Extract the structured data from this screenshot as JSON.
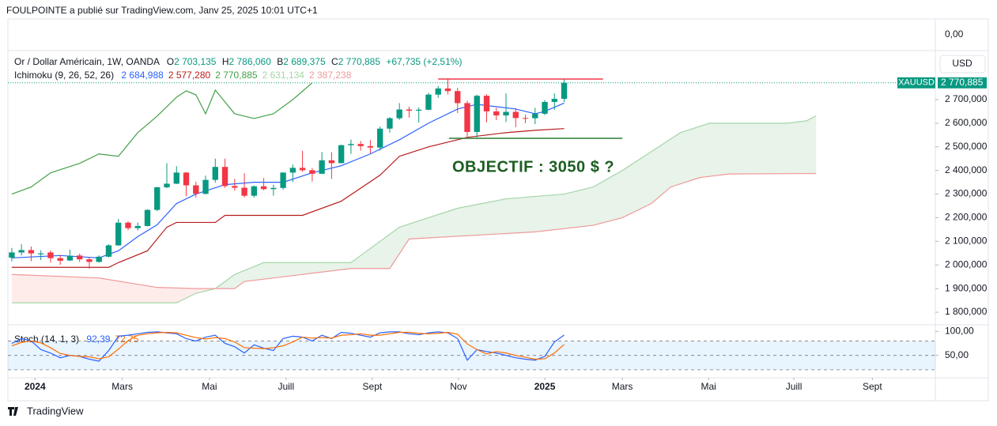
{
  "header": {
    "publisher": "FOULPOINTE a publié sur TradingView.com, Janv 25, 2025 10:01 UTC+1",
    "top_pane_label": "0,00",
    "currency": "USD",
    "logo": "TradingView"
  },
  "legend": {
    "symbol": "Or / Dollar Américain, 1W, OANDA",
    "ohlc": [
      [
        "O",
        "2 703,135"
      ],
      [
        "H",
        "2 786,060"
      ],
      [
        "B",
        "2 689,375"
      ],
      [
        "C",
        "2 770,885"
      ]
    ],
    "change": "+67,735 (+2,51%)",
    "ichimoku": "Ichimoku (9, 26, 52, 26)",
    "ichimoku_values": [
      "2 684,988",
      "2 577,280",
      "2 770,885",
      "2 631,134",
      "2 387,238"
    ],
    "stoch": "Stoch (14, 1, 3)"
  },
  "chart_data": [
    {
      "type": "candlestick",
      "symbol_tag": "XAUUSD",
      "up_color": "#089981",
      "down_color": "#f23645",
      "x": [
        0,
        1,
        2,
        3,
        4,
        5,
        6,
        7,
        8,
        9,
        10,
        11,
        12,
        13,
        14,
        15,
        16,
        17,
        18,
        19,
        20,
        21,
        22,
        23,
        24,
        25,
        26,
        27,
        28,
        29,
        30,
        31,
        32,
        33,
        34,
        35,
        36,
        37,
        38,
        39,
        40,
        41,
        42,
        43,
        44,
        45,
        46,
        47,
        48,
        49,
        50,
        51,
        52,
        53,
        54,
        55,
        56,
        57
      ],
      "open": [
        2031,
        2053,
        2063,
        2045,
        2053,
        2029,
        2019,
        2040,
        2024,
        2013,
        2035,
        2083,
        2179,
        2156,
        2165,
        2233,
        2329,
        2344,
        2391,
        2337,
        2301,
        2360,
        2415,
        2334,
        2327,
        2293,
        2333,
        2321,
        2326,
        2391,
        2411,
        2401,
        2386,
        2443,
        2431,
        2507,
        2512,
        2503,
        2497,
        2577,
        2621,
        2658,
        2653,
        2657,
        2721,
        2747,
        2736,
        2685,
        2563,
        2716,
        2650,
        2633,
        2648,
        2622,
        2621,
        2640,
        2690,
        2703.135
      ],
      "high": [
        2072,
        2088,
        2078,
        2062,
        2062,
        2042,
        2065,
        2048,
        2032,
        2041,
        2088,
        2195,
        2185,
        2180,
        2236,
        2331,
        2431,
        2418,
        2393,
        2352,
        2378,
        2450,
        2450,
        2364,
        2388,
        2336,
        2368,
        2340,
        2392,
        2425,
        2483,
        2410,
        2478,
        2477,
        2509,
        2531,
        2525,
        2529,
        2586,
        2626,
        2685,
        2670,
        2667,
        2729,
        2758,
        2790,
        2750,
        2695,
        2721,
        2722,
        2665,
        2726,
        2664,
        2636,
        2665,
        2698,
        2726,
        2786.06
      ],
      "low": [
        2015,
        2040,
        2016,
        2021,
        2010,
        2001,
        2017,
        2013,
        1984,
        2010,
        2032,
        2081,
        2147,
        2146,
        2163,
        2228,
        2325,
        2342,
        2291,
        2285,
        2298,
        2349,
        2326,
        2314,
        2286,
        2285,
        2316,
        2293,
        2318,
        2351,
        2394,
        2353,
        2385,
        2364,
        2430,
        2470,
        2484,
        2472,
        2484,
        2560,
        2614,
        2624,
        2603,
        2655,
        2707,
        2722,
        2643,
        2537,
        2537,
        2604,
        2613,
        2605,
        2583,
        2600,
        2596,
        2634,
        2657,
        2689.375
      ],
      "close": [
        2053,
        2063,
        2049,
        2049,
        2029,
        2018,
        2039,
        2024,
        2013,
        2035,
        2083,
        2179,
        2156,
        2165,
        2233,
        2329,
        2344,
        2391,
        2337,
        2301,
        2360,
        2415,
        2334,
        2327,
        2293,
        2333,
        2321,
        2326,
        2391,
        2411,
        2401,
        2386,
        2443,
        2431,
        2507,
        2512,
        2503,
        2497,
        2577,
        2621,
        2658,
        2653,
        2657,
        2721,
        2747,
        2736,
        2685,
        2563,
        2716,
        2650,
        2633,
        2648,
        2622,
        2621,
        2640,
        2690,
        2703,
        2770.885
      ],
      "series": [
        {
          "color": "#2962ff",
          "x": [
            0,
            5,
            9,
            11,
            13,
            15,
            17,
            19,
            22,
            25,
            28,
            31,
            34,
            37,
            40,
            43,
            46,
            48,
            52,
            54,
            55,
            57
          ],
          "values": [
            2030,
            2040,
            2030,
            2060,
            2120,
            2170,
            2260,
            2300,
            2340,
            2350,
            2350,
            2390,
            2420,
            2470,
            2530,
            2600,
            2660,
            2680,
            2660,
            2640,
            2650,
            2684.988
          ]
        },
        {
          "color": "#b71c1c",
          "x": [
            0,
            10,
            11,
            14,
            16,
            17,
            21,
            22,
            30,
            34,
            38,
            40,
            43,
            47,
            51,
            54,
            57
          ],
          "values": [
            1990,
            1990,
            2010,
            2060,
            2160,
            2180,
            2180,
            2210,
            2210,
            2270,
            2380,
            2460,
            2500,
            2540,
            2560,
            2570,
            2577.28
          ]
        },
        {
          "color": "#43a047",
          "x": [
            0,
            2,
            4,
            7,
            9,
            11,
            13,
            15,
            17,
            18,
            19,
            20,
            21,
            23,
            25,
            27,
            29,
            31
          ],
          "values": [
            2300,
            2330,
            2390,
            2430,
            2470,
            2460,
            2560,
            2630,
            2710,
            2737,
            2720,
            2640,
            2740,
            2640,
            2620,
            2640,
            2700,
            2770.885
          ]
        },
        {
          "color": "#a5d6a7",
          "x": [
            0,
            17,
            19,
            21,
            23,
            26,
            35,
            36,
            40,
            46,
            51,
            57,
            60,
            63,
            66,
            69,
            72,
            80,
            82,
            83
          ],
          "values": [
            1840,
            1840,
            1880,
            1900,
            1960,
            2010,
            2010,
            2040,
            2160,
            2240,
            2280,
            2300,
            2330,
            2400,
            2480,
            2560,
            2600,
            2600,
            2610,
            2631.134
          ]
        },
        {
          "color": "#ef9a9a",
          "x": [
            0,
            9,
            15,
            19,
            23,
            24,
            35,
            39,
            41,
            54,
            60,
            63,
            66,
            68,
            71,
            74,
            83
          ],
          "values": [
            1960,
            1945,
            1905,
            1900,
            1900,
            1930,
            1985,
            1985,
            2110,
            2140,
            2168,
            2200,
            2260,
            2330,
            2370,
            2385,
            2387.238
          ]
        }
      ],
      "cloud_colors": [
        "rgba(67,160,71,0.12)",
        "rgba(244,67,54,0.10)"
      ],
      "last_price": {
        "value": 2770.885,
        "label": "2 770,885"
      },
      "hlines": [
        {
          "value": 2787,
          "x": [
            44,
            61
          ],
          "color": "#f23645"
        },
        {
          "value": 2536,
          "x": [
            45.1,
            63
          ],
          "color": "#2e7d32"
        }
      ],
      "annotation": "OBJECTIF : 3050 $ ?",
      "xlim": [
        -0.4,
        95.3
      ],
      "xticks": [
        {
          "value": 2.4,
          "label": "2024"
        },
        {
          "value": 11.4,
          "label": "Mars"
        },
        {
          "value": 20.4,
          "label": "Mai"
        },
        {
          "value": 28.3,
          "label": "Juill"
        },
        {
          "value": 37.2,
          "label": "Sept"
        },
        {
          "value": 46.1,
          "label": "Nov"
        },
        {
          "value": 55,
          "label": "2025"
        },
        {
          "value": 63,
          "label": "Mars"
        },
        {
          "value": 71.9,
          "label": "Mai"
        },
        {
          "value": 80.7,
          "label": "Juill"
        },
        {
          "value": 88.8,
          "label": "Sept"
        }
      ],
      "ylim": [
        1750,
        2904
      ],
      "yticks": [
        {
          "value": 1800,
          "label": "1 800,000"
        },
        {
          "value": 1900,
          "label": "1 900,000"
        },
        {
          "value": 2000,
          "label": "2 000,000"
        },
        {
          "value": 2100,
          "label": "2 100,000"
        },
        {
          "value": 2200,
          "label": "2 200,000"
        },
        {
          "value": 2300,
          "label": "2 300,000"
        },
        {
          "value": 2400,
          "label": "2 400,000"
        },
        {
          "value": 2500,
          "label": "2 500,000"
        },
        {
          "value": 2600,
          "label": "2 600,000"
        },
        {
          "value": 2700,
          "label": "2 700,000"
        }
      ]
    },
    {
      "type": "line",
      "x": [
        0,
        1,
        2,
        3,
        4,
        5,
        6,
        7,
        8,
        9,
        10,
        11,
        12,
        13,
        14,
        15,
        16,
        17,
        18,
        19,
        20,
        21,
        22,
        23,
        24,
        25,
        26,
        27,
        28,
        29,
        30,
        31,
        32,
        33,
        34,
        35,
        36,
        37,
        38,
        39,
        40,
        41,
        42,
        43,
        44,
        45,
        46,
        47,
        48,
        49,
        50,
        51,
        52,
        53,
        54,
        55,
        56,
        57
      ],
      "series": [
        {
          "color": "#2962ff",
          "value_label": "92,39",
          "values": [
            75,
            85,
            80,
            62,
            55,
            45,
            50,
            48,
            42,
            38,
            60,
            90,
            92,
            95,
            98,
            99,
            97,
            95,
            85,
            80,
            88,
            92,
            75,
            68,
            55,
            72,
            65,
            60,
            85,
            90,
            88,
            80,
            92,
            85,
            98,
            96,
            92,
            88,
            97,
            99,
            99,
            95,
            93,
            97,
            99,
            97,
            85,
            40,
            62,
            58,
            55,
            50,
            45,
            42,
            40,
            48,
            78,
            92.39
          ]
        },
        {
          "color": "#ff6d00",
          "value_label": "72,75",
          "values": [
            70,
            77,
            80,
            76,
            66,
            54,
            50,
            48,
            47,
            43,
            47,
            63,
            81,
            92,
            95,
            97,
            98,
            97,
            92,
            87,
            84,
            87,
            85,
            78,
            66,
            65,
            64,
            66,
            70,
            78,
            88,
            86,
            87,
            86,
            92,
            93,
            95,
            92,
            92,
            95,
            98,
            98,
            96,
            95,
            96,
            98,
            94,
            74,
            62,
            53,
            58,
            55,
            50,
            46,
            42,
            43,
            55,
            72.75
          ]
        }
      ],
      "bands": [
        20,
        50,
        80
      ],
      "band_fill": "rgba(33,150,243,0.10)",
      "ylim": [
        5,
        112
      ],
      "yticks": [
        {
          "value": 100,
          "label": "100,00"
        },
        {
          "value": 50,
          "label": "50,00"
        }
      ]
    }
  ]
}
